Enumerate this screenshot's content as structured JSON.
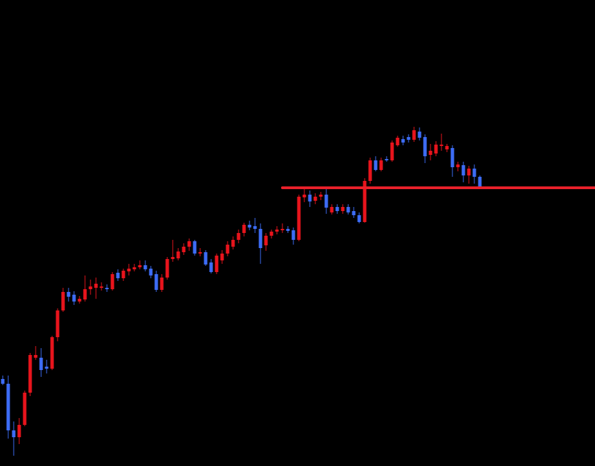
{
  "chart_data": {
    "type": "candlestick",
    "ylim": [
      0,
      680
    ],
    "up_color": "#e8141c",
    "down_color": "#3d6cf5",
    "open": [
      127,
      120,
      52,
      42,
      60,
      107,
      158,
      158,
      145,
      142,
      188,
      227,
      254,
      250,
      240,
      243,
      258,
      260,
      260,
      260,
      258,
      282,
      274,
      284,
      287,
      290,
      293,
      288,
      280,
      257,
      275,
      302,
      303,
      312,
      320,
      328,
      310,
      312,
      297,
      283,
      300,
      310,
      320,
      330,
      340,
      352,
      350,
      346,
      322,
      336,
      342,
      344,
      346,
      344,
      330,
      392,
      396,
      387,
      393,
      396,
      370,
      378,
      372,
      378,
      372,
      366,
      356,
      416,
      446,
      432,
      448,
      446,
      468,
      477,
      480,
      476,
      488,
      480,
      454,
      456,
      467,
      462,
      464,
      436,
      439,
      424,
      434,
      422
    ],
    "high": [
      132,
      132,
      65,
      70,
      110,
      165,
      175,
      172,
      155,
      190,
      230,
      260,
      260,
      255,
      248,
      278,
      272,
      275,
      268,
      265,
      283,
      287,
      288,
      295,
      295,
      300,
      300,
      292,
      285,
      280,
      305,
      330,
      318,
      325,
      332,
      330,
      318,
      315,
      302,
      310,
      315,
      328,
      335,
      345,
      355,
      358,
      362,
      354,
      340,
      345,
      350,
      354,
      350,
      348,
      396,
      404,
      402,
      398,
      400,
      404,
      382,
      382,
      382,
      382,
      378,
      370,
      420,
      450,
      452,
      450,
      452,
      475,
      482,
      482,
      484,
      495,
      494,
      484,
      470,
      474,
      485,
      470,
      468,
      444,
      444,
      438,
      440,
      424
    ],
    "low": [
      118,
      40,
      15,
      32,
      58,
      102,
      155,
      130,
      135,
      140,
      182,
      225,
      240,
      235,
      237,
      240,
      250,
      244,
      256,
      254,
      256,
      270,
      270,
      278,
      284,
      287,
      284,
      274,
      254,
      254,
      272,
      298,
      300,
      308,
      314,
      307,
      306,
      292,
      281,
      280,
      295,
      306,
      316,
      325,
      335,
      344,
      340,
      295,
      314,
      332,
      338,
      340,
      340,
      323,
      328,
      385,
      378,
      382,
      388,
      368,
      367,
      368,
      368,
      367,
      362,
      354,
      355,
      412,
      430,
      430,
      444,
      444,
      466,
      468,
      472,
      473,
      475,
      442,
      446,
      452,
      460,
      458,
      422,
      430,
      414,
      412,
      412,
      404
    ],
    "close": [
      120,
      52,
      42,
      60,
      107,
      162,
      162,
      140,
      142,
      188,
      227,
      254,
      247,
      240,
      244,
      258,
      262,
      266,
      262,
      258,
      280,
      274,
      285,
      288,
      290,
      293,
      287,
      278,
      257,
      275,
      302,
      305,
      313,
      320,
      328,
      310,
      312,
      294,
      283,
      307,
      310,
      323,
      330,
      340,
      352,
      348,
      346,
      318,
      336,
      342,
      345,
      346,
      343,
      330,
      393,
      396,
      386,
      393,
      396,
      377,
      378,
      372,
      378,
      370,
      366,
      356,
      416,
      446,
      432,
      446,
      446,
      472,
      479,
      472,
      476,
      490,
      479,
      452,
      460,
      469,
      469,
      467,
      436,
      440,
      424,
      434,
      422,
      408
    ],
    "level": 406,
    "level_color": "#e8202a"
  }
}
